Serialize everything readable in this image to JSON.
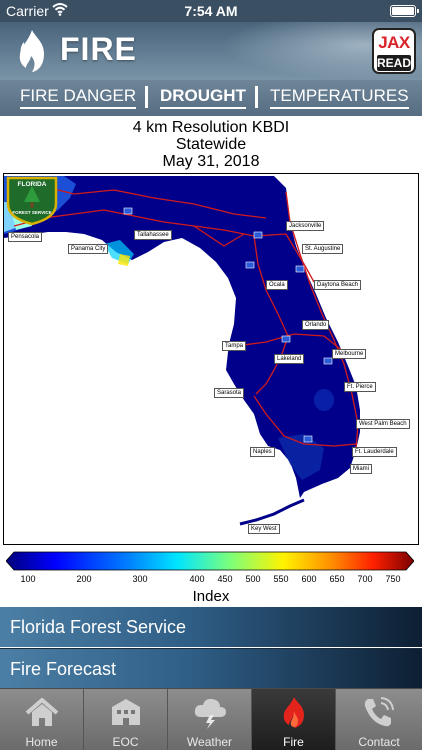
{
  "status_bar": {
    "carrier": "Carrier",
    "time": "7:54 AM"
  },
  "header": {
    "title": "FIRE",
    "logo_top": "JAX",
    "logo_bottom": "READY"
  },
  "tabs": [
    {
      "label": "FIRE DANGER",
      "active": false
    },
    {
      "label": "DROUGHT",
      "active": true
    },
    {
      "label": "TEMPERATURES",
      "active": false
    }
  ],
  "map": {
    "title_lines": [
      "4 km Resolution KBDI",
      "Statewide",
      "May 31, 2018"
    ],
    "cities": [
      "Pensacola",
      "Panama City",
      "Tallahassee",
      "Jacksonville",
      "St. Augustine",
      "Daytona Beach",
      "Ocala",
      "Orlando",
      "Tampa",
      "Lakeland",
      "Melbourne",
      "Sarasota",
      "Ft. Pierce",
      "West Palm Beach",
      "Ft. Lauderdale",
      "Naples",
      "Miami",
      "Key West"
    ],
    "logo_top": "FLORIDA",
    "logo_bottom": "FOREST SERVICE",
    "colorbar_ticks": [
      "100",
      "200",
      "300",
      "400",
      "450",
      "500",
      "550",
      "600",
      "650",
      "700",
      "750"
    ],
    "colorbar_label": "Index",
    "colors": {
      "land": "#00008b",
      "land_wet": "#0a1fa8",
      "roads": "#d11b1b",
      "water": "#ffffff"
    }
  },
  "menu": [
    {
      "label": "Florida Forest Service"
    },
    {
      "label": "Fire Forecast"
    }
  ],
  "bottom_nav": [
    {
      "label": "Home",
      "icon": "home-icon",
      "active": false
    },
    {
      "label": "EOC",
      "icon": "eoc-building-icon",
      "active": false
    },
    {
      "label": "Weather",
      "icon": "weather-cloud-icon",
      "active": false
    },
    {
      "label": "Fire",
      "icon": "fire-icon",
      "active": true
    },
    {
      "label": "Contact",
      "icon": "phone-icon",
      "active": false
    }
  ]
}
